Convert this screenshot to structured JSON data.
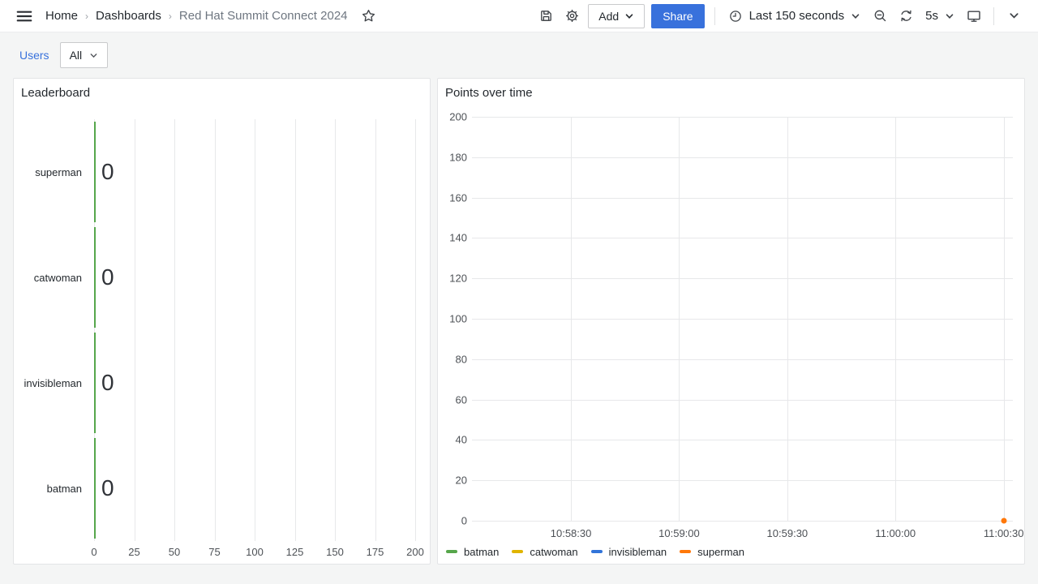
{
  "nav": {
    "breadcrumb": [
      "Home",
      "Dashboards",
      "Red Hat Summit Connect 2024"
    ],
    "separator": "›",
    "add_label": "Add",
    "share_label": "Share",
    "time_range": "Last 150 seconds",
    "refresh_interval": "5s"
  },
  "icons": {
    "menu": "hamburger",
    "favorite": "star-outline",
    "save": "floppy-disk",
    "settings": "gear",
    "time": "clock",
    "zoom_out": "magnifier-minus",
    "refresh": "circular-arrows",
    "tv": "monitor",
    "collapse": "chevron-down"
  },
  "variables": {
    "label": "Users",
    "value": "All"
  },
  "panels": {
    "leaderboard": {
      "title": "Leaderboard"
    },
    "points": {
      "title": "Points over time"
    }
  },
  "colors": {
    "accent_blue": "#3871DC",
    "series_green": "#56A64B",
    "series_yellow": "#E0B400",
    "series_blue": "#3274D9",
    "series_orange": "#FF780A"
  },
  "chart_data": [
    {
      "type": "bar",
      "orientation": "horizontal",
      "title": "Leaderboard",
      "categories": [
        "superman",
        "catwoman",
        "invisibleman",
        "batman"
      ],
      "values": [
        0,
        0,
        0,
        0
      ],
      "value_labels": [
        "0",
        "0",
        "0",
        "0"
      ],
      "bar_color": "#56A64B",
      "xlim": [
        0,
        200
      ],
      "x_ticks": [
        0,
        25,
        50,
        75,
        100,
        125,
        150,
        175,
        200
      ],
      "grid": true
    },
    {
      "type": "line",
      "title": "Points over time",
      "ylim": [
        0,
        200
      ],
      "y_ticks": [
        0,
        20,
        40,
        60,
        80,
        100,
        120,
        140,
        160,
        180,
        200
      ],
      "x_ticks": [
        "10:58:30",
        "10:59:00",
        "10:59:30",
        "11:00:00",
        "11:00:30"
      ],
      "grid": true,
      "legend_position": "bottom",
      "series": [
        {
          "name": "batman",
          "color": "#56A64B",
          "points": []
        },
        {
          "name": "catwoman",
          "color": "#E0B400",
          "points": []
        },
        {
          "name": "invisibleman",
          "color": "#3274D9",
          "points": []
        },
        {
          "name": "superman",
          "color": "#FF780A",
          "points": [
            {
              "x": "11:00:30",
              "y": 0
            }
          ]
        }
      ]
    }
  ]
}
